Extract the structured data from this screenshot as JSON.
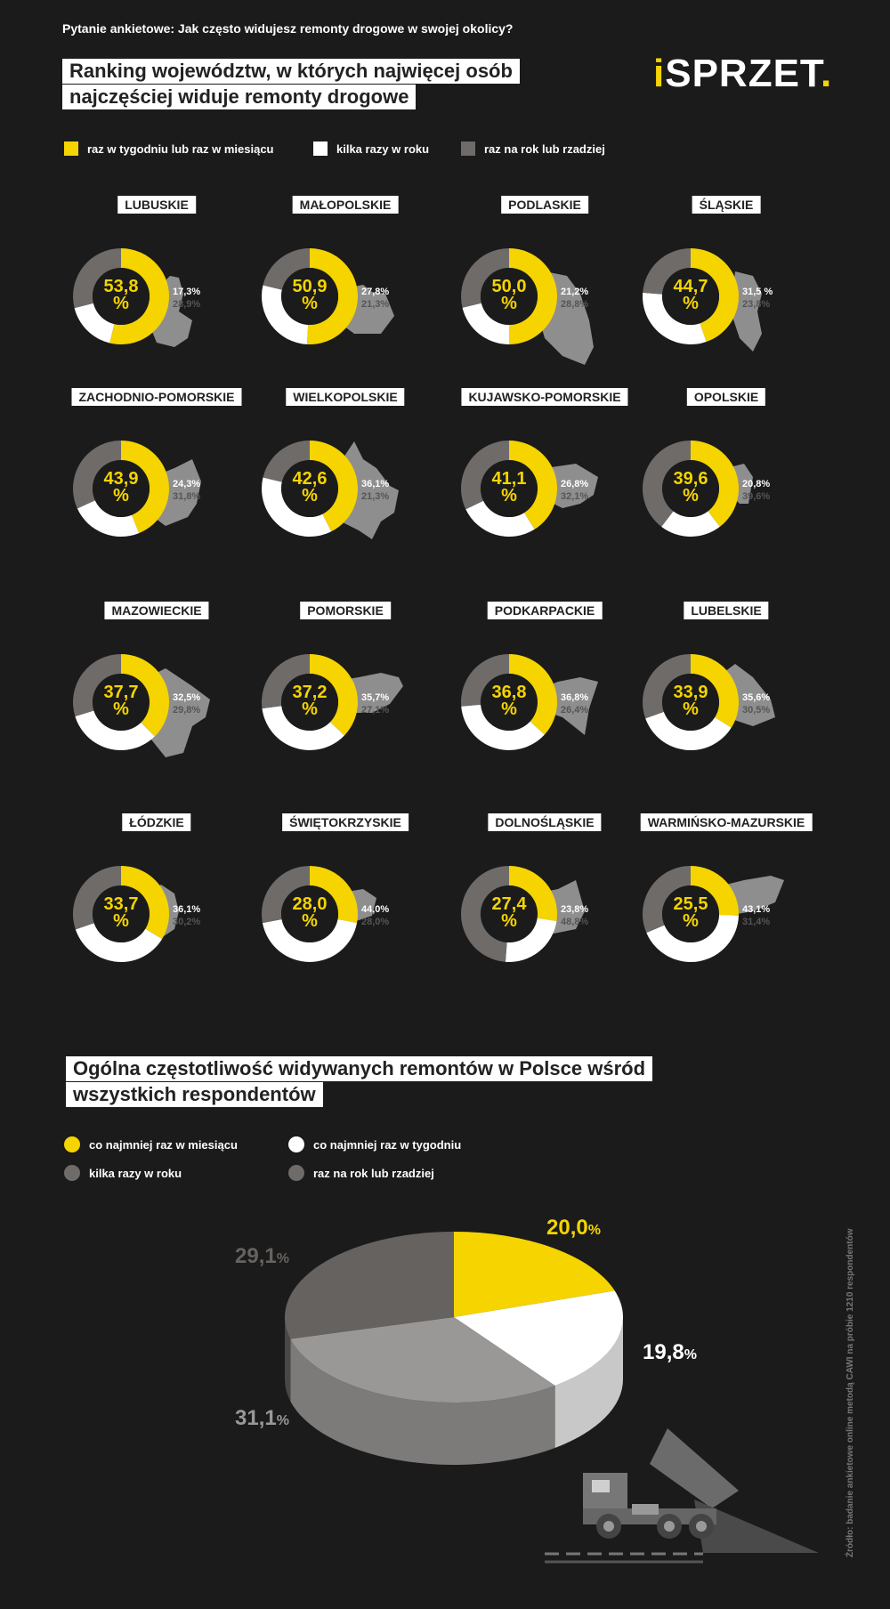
{
  "question": "Pytanie ankietowe: Jak często widujesz remonty drogowe w swojej okolicy?",
  "title_lines": [
    "Ranking województw, w których najwięcej osób",
    "najczęściej widuje remonty drogowe"
  ],
  "logo": {
    "prefix": "i",
    "main": "SPRZET",
    "suffix": "."
  },
  "colors": {
    "yellow": "#f5d400",
    "white": "#ffffff",
    "gray": "#6e6b69",
    "map": "#8e8e8e",
    "dark": "#1b1b1b"
  },
  "legend": [
    "raz w tygodniu lub raz w miesiącu",
    "kilka razy w roku",
    "raz na rok lub rzadziej"
  ],
  "percent_sign": "%",
  "provinces": [
    {
      "name": "LUBUSKIE",
      "v1": 53.8,
      "v2": 17.3,
      "v3": 28.9,
      "t1": "53,8",
      "t2": "17,3%",
      "t3": "28,9%"
    },
    {
      "name": "MAŁOPOLSKIE",
      "v1": 50.9,
      "v2": 27.8,
      "v3": 21.3,
      "t1": "50,9",
      "t2": "27,8%",
      "t3": "21,3%"
    },
    {
      "name": "PODLASKIE",
      "v1": 50.0,
      "v2": 21.2,
      "v3": 28.8,
      "t1": "50,0",
      "t2": "21,2%",
      "t3": "28,8%"
    },
    {
      "name": "ŚLĄSKIE",
      "v1": 44.7,
      "v2": 31.5,
      "v3": 23.8,
      "t1": "44,7",
      "t2": "31,5      %",
      "t3": "23,8%"
    },
    {
      "name": "ZACHODNIO-POMORSKIE",
      "v1": 43.9,
      "v2": 24.3,
      "v3": 31.8,
      "t1": "43,9",
      "t2": "24,3%",
      "t3": "31,8%"
    },
    {
      "name": "WIELKOPOLSKIE",
      "v1": 42.6,
      "v2": 36.1,
      "v3": 21.3,
      "t1": "42,6",
      "t2": "36,1%",
      "t3": "21,3%"
    },
    {
      "name": "KUJAWSKO-POMORSKIE",
      "v1": 41.1,
      "v2": 26.8,
      "v3": 32.1,
      "t1": "41,1",
      "t2": "26,8%",
      "t3": "32,1%"
    },
    {
      "name": "OPOLSKIE",
      "v1": 39.6,
      "v2": 20.8,
      "v3": 39.6,
      "t1": "39,6",
      "t2": "20,8%",
      "t3": "39,6%"
    },
    {
      "name": "MAZOWIECKIE",
      "v1": 37.7,
      "v2": 32.5,
      "v3": 29.8,
      "t1": "37,7",
      "t2": "32,5%",
      "t3": "29,8%"
    },
    {
      "name": "POMORSKIE",
      "v1": 37.2,
      "v2": 35.7,
      "v3": 27.1,
      "t1": "37,2",
      "t2": "35,7%",
      "t3": "27,1%"
    },
    {
      "name": "PODKARPACKIE",
      "v1": 36.8,
      "v2": 36.8,
      "v3": 26.4,
      "t1": "36,8",
      "t2": "36,8%",
      "t3": "26,4%"
    },
    {
      "name": "LUBELSKIE",
      "v1": 33.9,
      "v2": 35.6,
      "v3": 30.5,
      "t1": "33,9",
      "t2": "35,6%",
      "t3": "30,5%"
    },
    {
      "name": "ŁÓDZKIE",
      "v1": 33.7,
      "v2": 36.1,
      "v3": 30.2,
      "t1": "33,7",
      "t2": "36,1%",
      "t3": "30,2%"
    },
    {
      "name": "ŚWIĘTOKRZYSKIE",
      "v1": 28.0,
      "v2": 44.0,
      "v3": 28.0,
      "t1": "28,0",
      "t2": "44,0%",
      "t3": "28,0%"
    },
    {
      "name": "DOLNOŚLĄSKIE",
      "v1": 27.4,
      "v2": 23.8,
      "v3": 48.8,
      "t1": "27,4",
      "t2": "23,8%",
      "t3": "48,8%"
    },
    {
      "name": "WARMIŃSKO-MAZURSKIE",
      "v1": 25.5,
      "v2": 43.1,
      "v3": 31.4,
      "t1": "25,5",
      "t2": "43,1%",
      "t3": "31,4%"
    }
  ],
  "section2_title_lines": [
    "Ogólna częstotliwość widywanych remontów w Polsce wśród",
    "wszystkich respondentów"
  ],
  "legend2": [
    "co najmniej raz w miesiącu",
    "co najmniej raz w tygodniu",
    "kilka razy w roku",
    "raz na rok lub rzadziej"
  ],
  "chart_data": {
    "type": "pie",
    "title": "Ogólna częstotliwość widywanych remontów w Polsce wśród wszystkich respondentów",
    "slices": [
      {
        "label": "co najmniej raz w miesiącu",
        "value": 20.0,
        "text": "20,0",
        "color": "#f5d400"
      },
      {
        "label": "co najmniej raz w tygodniu",
        "value": 19.8,
        "text": "19,8",
        "color": "#ffffff"
      },
      {
        "label": "kilka razy w roku",
        "value": 31.1,
        "text": "31,1",
        "color": "#9a9897"
      },
      {
        "label": "raz na rok lub rzadziej",
        "value": 29.1,
        "text": "29,1",
        "color": "#66625f"
      }
    ],
    "provinces_chart": {
      "type": "donut",
      "series": [
        "raz w tygodniu lub raz w miesiącu",
        "kilka razy w roku",
        "raz na rok lub rzadziej"
      ]
    }
  },
  "source": "Źródło: badanie ankietowe online metodą CAWI na próbie 1210 respondentów"
}
